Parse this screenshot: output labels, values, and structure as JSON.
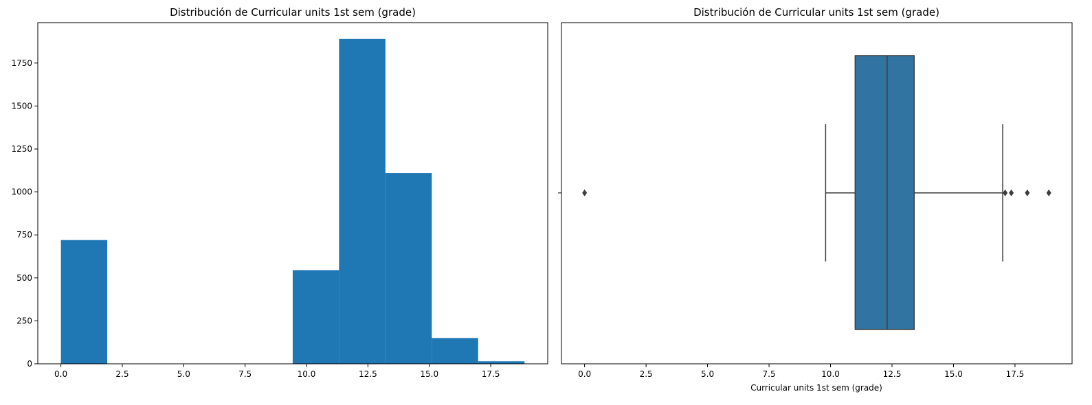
{
  "chart_data": [
    {
      "type": "bar",
      "subtype": "histogram",
      "title": "Distribución de Curricular units 1st sem (grade)",
      "xlabel": "",
      "ylabel": "",
      "bin_edges": [
        0.0,
        1.8875,
        3.775,
        5.6625,
        7.55,
        9.4375,
        11.325,
        13.2125,
        15.1,
        16.9875,
        18.875
      ],
      "values": [
        720,
        0,
        0,
        0,
        0,
        545,
        1890,
        1110,
        150,
        15
      ],
      "xlim": [
        -0.94,
        19.82
      ],
      "ylim": [
        0,
        1985
      ],
      "xticks": [
        0.0,
        2.5,
        5.0,
        7.5,
        10.0,
        12.5,
        15.0,
        17.5
      ],
      "xtick_labels": [
        "0.0",
        "2.5",
        "5.0",
        "7.5",
        "10.0",
        "12.5",
        "15.0",
        "17.5"
      ],
      "yticks": [
        0,
        250,
        500,
        750,
        1000,
        1250,
        1500,
        1750
      ],
      "ytick_labels": [
        "0",
        "250",
        "500",
        "750",
        "1000",
        "1250",
        "1500",
        "1750"
      ],
      "color": "#1f77b4",
      "grid": false
    },
    {
      "type": "boxplot",
      "orientation": "horizontal",
      "title": "Distribución de Curricular units 1st sem (grade)",
      "xlabel": "Curricular units 1st sem (grade)",
      "ylabel": "",
      "box": {
        "whisker_low": 9.8,
        "q1": 11.0,
        "median": 12.3,
        "q3": 13.4,
        "whisker_high": 17.0
      },
      "outliers": [
        0.0,
        17.1,
        17.35,
        18.0,
        18.875
      ],
      "xlim": [
        -0.94,
        19.82
      ],
      "xticks": [
        0.0,
        2.5,
        5.0,
        7.5,
        10.0,
        12.5,
        15.0,
        17.5
      ],
      "xtick_labels": [
        "0.0",
        "2.5",
        "5.0",
        "7.5",
        "10.0",
        "12.5",
        "15.0",
        "17.5"
      ],
      "box_color": "#3274a1",
      "line_color": "#3d3d3d",
      "grid": false
    }
  ]
}
